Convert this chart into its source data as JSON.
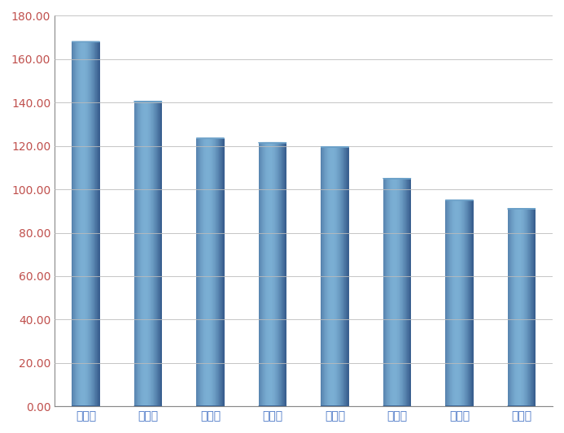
{
  "categories": [
    "南安市",
    "福清市",
    "安溪县",
    "晋江市",
    "仙游县",
    "惠安县",
    "漳浦县",
    "龙海市"
  ],
  "values": [
    168.0,
    140.5,
    123.5,
    121.5,
    119.5,
    105.0,
    95.0,
    91.0
  ],
  "bar_color_center": "#7BAFD4",
  "bar_color_mid": "#5B8FBD",
  "bar_color_edge": "#3A6090",
  "bar_color_top": "#6BA0C8",
  "background_color": "#FFFFFF",
  "grid_color": "#BBBBBB",
  "ylim": [
    0,
    180
  ],
  "yticks": [
    0,
    20,
    40,
    60,
    80,
    100,
    120,
    140,
    160,
    180
  ],
  "tick_fontsize": 10,
  "xlabel_fontsize": 10,
  "xlabel_color": "#4472C4",
  "ylabel_color": "#C0504D",
  "bar_width": 0.45
}
